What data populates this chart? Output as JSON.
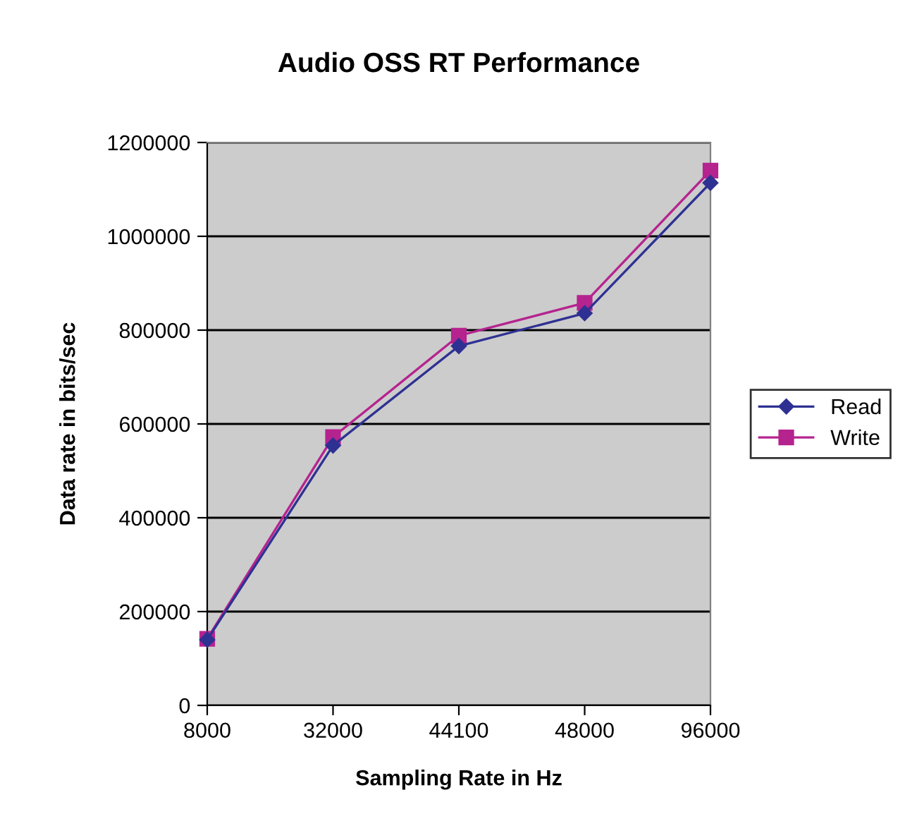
{
  "chart_data": {
    "type": "line",
    "title": "Audio OSS RT Performance",
    "xlabel": "Sampling Rate in Hz",
    "ylabel": "Data rate in bits/sec",
    "categories": [
      "8000",
      "32000",
      "44100",
      "48000",
      "96000"
    ],
    "series": [
      {
        "name": "Read",
        "color": "#2e3192",
        "marker": "diamond",
        "values": [
          140000,
          554000,
          766000,
          836000,
          1114000
        ]
      },
      {
        "name": "Write",
        "color": "#b5238f",
        "marker": "square",
        "values": [
          142000,
          572000,
          788000,
          858000,
          1140000
        ]
      }
    ],
    "ylim": [
      0,
      1200000
    ],
    "yticks": [
      0,
      200000,
      400000,
      600000,
      800000,
      1000000,
      1200000
    ],
    "grid": "y",
    "legend": "right",
    "line_style": "solid"
  }
}
